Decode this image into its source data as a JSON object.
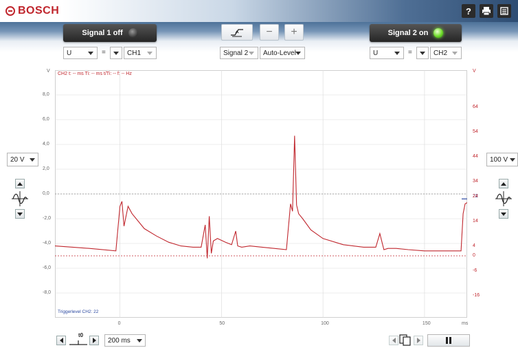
{
  "header": {
    "brand": "BOSCH",
    "help_label": "?",
    "print_icon": "printer-icon",
    "menu_icon": "menu-icon"
  },
  "channel1": {
    "signal_label": "Signal 1 off",
    "signal_state": "off",
    "quantity": "U",
    "coupling": "=",
    "channel": "CH1"
  },
  "center": {
    "trigger_icon": "trigger-edge-icon",
    "minus_label": "−",
    "plus_label": "+",
    "trigger_source": "Signal 2",
    "level_mode": "Auto-Level"
  },
  "channel2": {
    "signal_label": "Signal 2 on",
    "signal_state": "on",
    "quantity": "U",
    "coupling": "=",
    "channel": "CH2"
  },
  "left_panel": {
    "range": "20 V"
  },
  "right_panel": {
    "range": "100 V"
  },
  "plot": {
    "left_unit": "V",
    "right_unit": "V",
    "x_unit": "ms",
    "cursor_readout": "CH2  t: -- ms   Ti: -- ms   t/Ti: --   f: --   Hz",
    "trigger_label": "Triggerlevel CH2: 22",
    "trigger_marker": "22",
    "left_ticks": [
      "8,0",
      "6,0",
      "4,0",
      "2,0",
      "0,0",
      "-2,0",
      "-4,0",
      "-6,0",
      "-8,0"
    ],
    "right_ticks": [
      "64",
      "54",
      "44",
      "34",
      "24",
      "14",
      "4",
      "0",
      "-6",
      "-16"
    ],
    "x_ticks": [
      "0",
      "50",
      "100",
      "150"
    ]
  },
  "bottom": {
    "time_base": "200 ms",
    "trigger_pos_label": "t0",
    "pause_label": "pause"
  },
  "colors": {
    "trace": "#c0262d",
    "grid": "#d9d9d9",
    "trigger_line": "#2a48a0"
  },
  "chart_data": {
    "type": "line",
    "title": "",
    "xlabel": "ms",
    "ylabel": "V",
    "xlim": [
      -32,
      171
    ],
    "ylim": [
      -10,
      10
    ],
    "grid": true,
    "series": [
      {
        "name": "",
        "x": [
          -32,
          -15,
          -2,
          0,
          1,
          2,
          4,
          6,
          9,
          12,
          18,
          24,
          30,
          36,
          40,
          42,
          43,
          44,
          45,
          46,
          48,
          52,
          55,
          57,
          58,
          60,
          64,
          70,
          76,
          82,
          84,
          85,
          86,
          87,
          88,
          90,
          94,
          100,
          110,
          120,
          126,
          128,
          130,
          132,
          134,
          136,
          142,
          150,
          160,
          168,
          169,
          170,
          171
        ],
        "y": [
          -4.2,
          -4.4,
          -4.6,
          -1.0,
          -0.6,
          -2.6,
          -1.0,
          -1.6,
          -2.2,
          -2.8,
          -3.4,
          -3.9,
          -4.2,
          -4.3,
          -4.3,
          -2.5,
          -5.2,
          -1.8,
          -4.8,
          -3.8,
          -3.6,
          -3.9,
          -4.1,
          -3.0,
          -4.2,
          -4.3,
          -4.2,
          -4.3,
          -4.4,
          -4.5,
          -0.8,
          -1.4,
          4.7,
          -0.9,
          -1.6,
          -2.0,
          -2.9,
          -3.6,
          -4.1,
          -4.3,
          -4.3,
          -3.2,
          -4.5,
          -4.4,
          -4.4,
          -4.4,
          -4.5,
          -4.6,
          -4.6,
          -4.6,
          -1.6,
          -0.8,
          -0.7
        ]
      }
    ]
  }
}
